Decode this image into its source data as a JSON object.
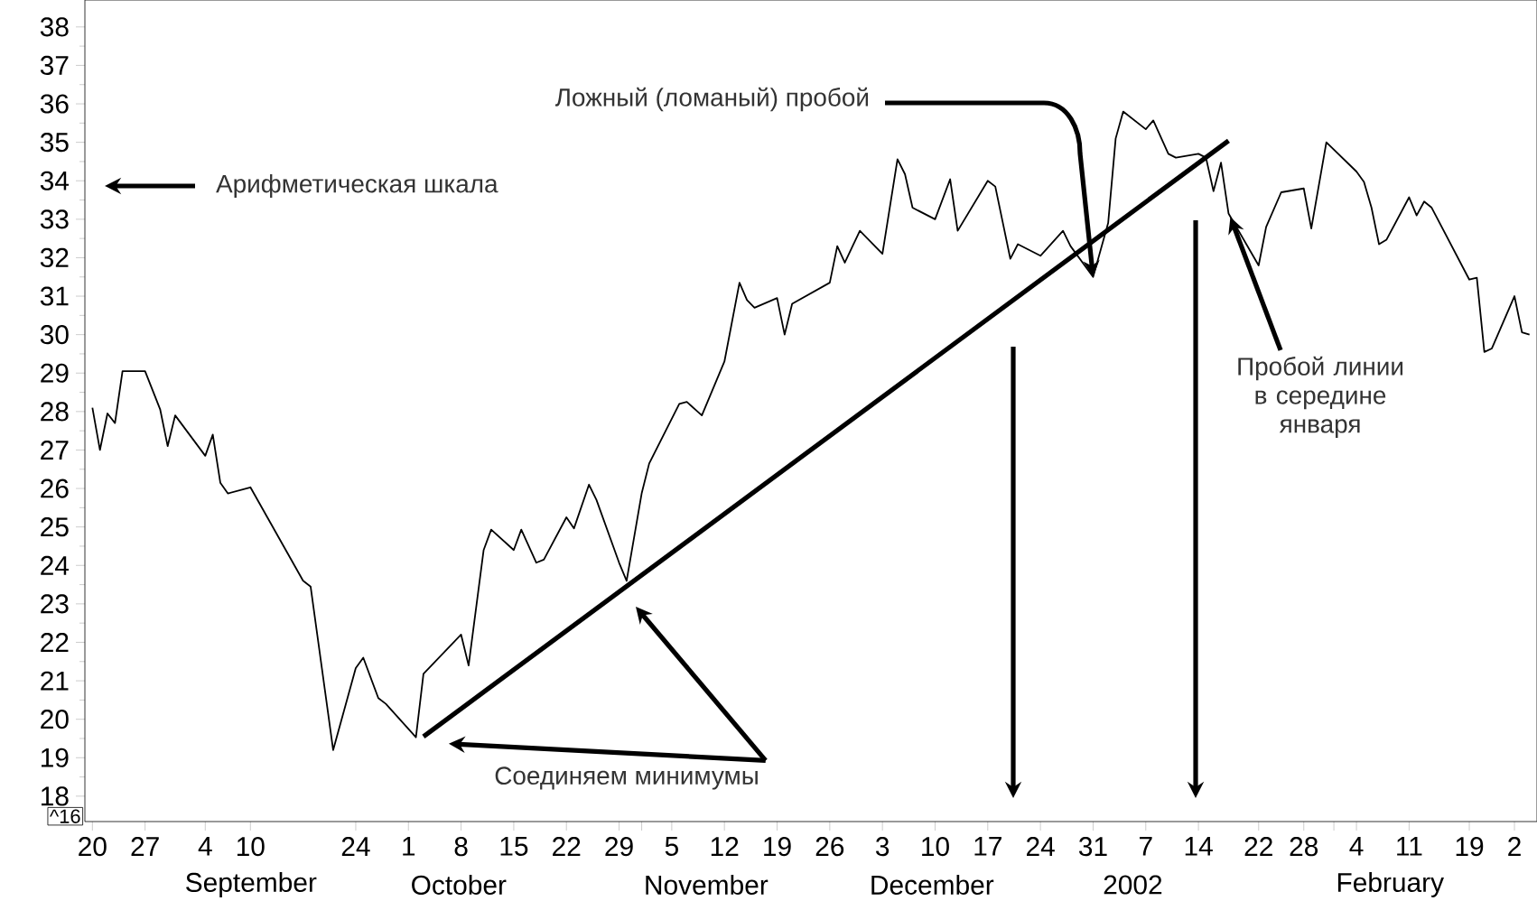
{
  "chart_data": {
    "type": "line",
    "series": [
      {
        "color": "#000000",
        "x": [
          "2001-08-20",
          "2001-08-21",
          "2001-08-22",
          "2001-08-23",
          "2001-08-24",
          "2001-08-27",
          "2001-08-29",
          "2001-08-30",
          "2001-08-31",
          "2001-09-04",
          "2001-09-05",
          "2001-09-06",
          "2001-09-07",
          "2001-09-10",
          "2001-09-17",
          "2001-09-18",
          "2001-09-21",
          "2001-09-24",
          "2001-09-25",
          "2001-09-27",
          "2001-09-28",
          "2001-10-02",
          "2001-10-03",
          "2001-10-08",
          "2001-10-09",
          "2001-10-11",
          "2001-10-12",
          "2001-10-15",
          "2001-10-16",
          "2001-10-18",
          "2001-10-19",
          "2001-10-22",
          "2001-10-23",
          "2001-10-25",
          "2001-10-26",
          "2001-10-29",
          "2001-10-30",
          "2001-11-01",
          "2001-11-02",
          "2001-11-06",
          "2001-11-07",
          "2001-11-09",
          "2001-11-12",
          "2001-11-14",
          "2001-11-15",
          "2001-11-16",
          "2001-11-19",
          "2001-11-20",
          "2001-11-21",
          "2001-11-26",
          "2001-11-27",
          "2001-11-28",
          "2001-11-30",
          "2001-12-03",
          "2001-12-05",
          "2001-12-06",
          "2001-12-07",
          "2001-12-10",
          "2001-12-12",
          "2001-12-13",
          "2001-12-17",
          "2001-12-18",
          "2001-12-20",
          "2001-12-21",
          "2001-12-24",
          "2001-12-27",
          "2001-12-28",
          "2001-12-31",
          "2002-01-02",
          "2002-01-03",
          "2002-01-04",
          "2002-01-07",
          "2002-01-08",
          "2002-01-10",
          "2002-01-11",
          "2002-01-14",
          "2002-01-15",
          "2002-01-16",
          "2002-01-17",
          "2002-01-18",
          "2002-01-22",
          "2002-01-23",
          "2002-01-25",
          "2002-01-28",
          "2002-01-29",
          "2002-01-31",
          "2002-02-04",
          "2002-02-05",
          "2002-02-06",
          "2002-02-07",
          "2002-02-08",
          "2002-02-11",
          "2002-02-12",
          "2002-02-13",
          "2002-02-14",
          "2002-02-19",
          "2002-02-20",
          "2002-02-21",
          "2002-02-22",
          "2002-02-25",
          "2002-02-26",
          "2002-02-27"
        ],
        "values": [
          28.1,
          27.0,
          27.95,
          27.7,
          29.05,
          29.05,
          28.06,
          27.1,
          27.9,
          26.85,
          27.4,
          26.15,
          25.87,
          26.03,
          23.6,
          23.45,
          19.2,
          21.33,
          21.6,
          20.55,
          20.4,
          19.53,
          21.18,
          22.2,
          21.4,
          24.4,
          24.93,
          24.4,
          24.93,
          24.07,
          24.15,
          25.25,
          24.96,
          26.1,
          25.7,
          24.07,
          23.6,
          25.87,
          26.65,
          28.2,
          28.25,
          27.9,
          29.3,
          31.35,
          30.9,
          30.7,
          30.95,
          30.0,
          30.8,
          31.35,
          32.3,
          31.87,
          32.7,
          32.1,
          34.56,
          34.17,
          33.3,
          33.0,
          34.04,
          32.7,
          34.0,
          33.85,
          31.97,
          32.35,
          32.05,
          32.7,
          32.3,
          31.5,
          32.9,
          35.1,
          35.8,
          35.34,
          35.57,
          34.7,
          34.6,
          34.7,
          34.6,
          33.73,
          34.47,
          33.15,
          31.8,
          32.8,
          33.7,
          33.8,
          32.76,
          35.0,
          34.24,
          33.97,
          33.3,
          32.35,
          32.47,
          33.57,
          33.1,
          33.46,
          33.3,
          31.43,
          31.48,
          29.55,
          29.64,
          31.0,
          30.06,
          30.0
        ]
      },
      {
        "color": "#000000",
        "x": [
          "2001-10-03",
          "2002-01-18"
        ],
        "values": [
          19.55,
          35.04
        ]
      }
    ],
    "xlim": [
      "2001-08-19",
      "2002-02-28"
    ],
    "ylim": [
      17.34,
      38.7
    ],
    "xticks": [
      {
        "value": "2001-08-20",
        "label": "20"
      },
      {
        "value": "2001-08-27",
        "label": "27"
      },
      {
        "value": "2001-09-04",
        "label": "4"
      },
      {
        "value": "2001-09-10",
        "label": "10"
      },
      {
        "value": "2001-09-24",
        "label": "24"
      },
      {
        "value": "2001-10-01",
        "label": "1"
      },
      {
        "value": "2001-10-08",
        "label": "8"
      },
      {
        "value": "2001-10-15",
        "label": "15"
      },
      {
        "value": "2001-10-22",
        "label": "22"
      },
      {
        "value": "2001-10-29",
        "label": "29"
      },
      {
        "value": "2001-11-01",
        "label": null
      },
      {
        "value": "2001-11-05",
        "label": "5"
      },
      {
        "value": "2001-11-12",
        "label": "12"
      },
      {
        "value": "2001-11-19",
        "label": "19"
      },
      {
        "value": "2001-11-26",
        "label": "26"
      },
      {
        "value": "2001-12-03",
        "label": "3"
      },
      {
        "value": "2001-12-10",
        "label": "10"
      },
      {
        "value": "2001-12-17",
        "label": "17"
      },
      {
        "value": "2001-12-24",
        "label": "24"
      },
      {
        "value": "2001-12-31",
        "label": "31"
      },
      {
        "value": "2002-01-07",
        "label": "7"
      },
      {
        "value": "2002-01-14",
        "label": "14"
      },
      {
        "value": "2002-01-22",
        "label": "22"
      },
      {
        "value": "2002-01-28",
        "label": "28"
      },
      {
        "value": "2002-02-01",
        "label": null
      },
      {
        "value": "2002-02-04",
        "label": "4"
      },
      {
        "value": "2002-02-11",
        "label": "11"
      },
      {
        "value": "2002-02-19",
        "label": "19"
      },
      {
        "value": "2002-02-25",
        "label": "2"
      }
    ],
    "yticks": [
      18,
      19,
      20,
      21,
      22,
      23,
      24,
      25,
      26,
      27,
      28,
      29,
      30,
      31,
      32,
      33,
      34,
      35,
      36,
      37,
      38
    ],
    "annotations": [
      {
        "text": "Ложный (ломаный) пробой",
        "x": "2001-12-31",
        "y": 31.5
      },
      "Арифметическая шкала",
      {
        "text": "Пробой линии в середине января",
        "x": "2002-01-18",
        "y": 33.15
      },
      "Соединяем минимумы",
      "September",
      "October",
      "November",
      "December",
      "2002",
      "February",
      "^16"
    ]
  }
}
